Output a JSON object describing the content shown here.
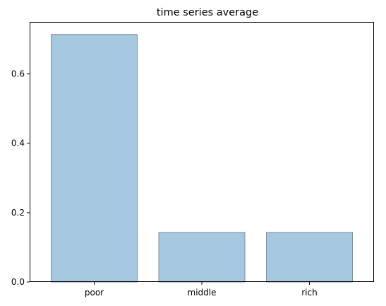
{
  "chart_data": {
    "type": "bar",
    "title": "time series average",
    "xlabel": "",
    "ylabel": "",
    "categories": [
      "poor",
      "middle",
      "rich"
    ],
    "values": [
      0.714,
      0.143,
      0.143
    ],
    "ylim": [
      0,
      0.75
    ],
    "yticks": [
      0.0,
      0.2,
      0.4,
      0.6
    ],
    "ytick_labels": [
      "0.0",
      "0.2",
      "0.4",
      "0.6"
    ],
    "grid": false,
    "colors": {
      "bar_fill": "#a6c8e0",
      "bar_edge": "#7f8c99",
      "axes": "#000000"
    }
  }
}
